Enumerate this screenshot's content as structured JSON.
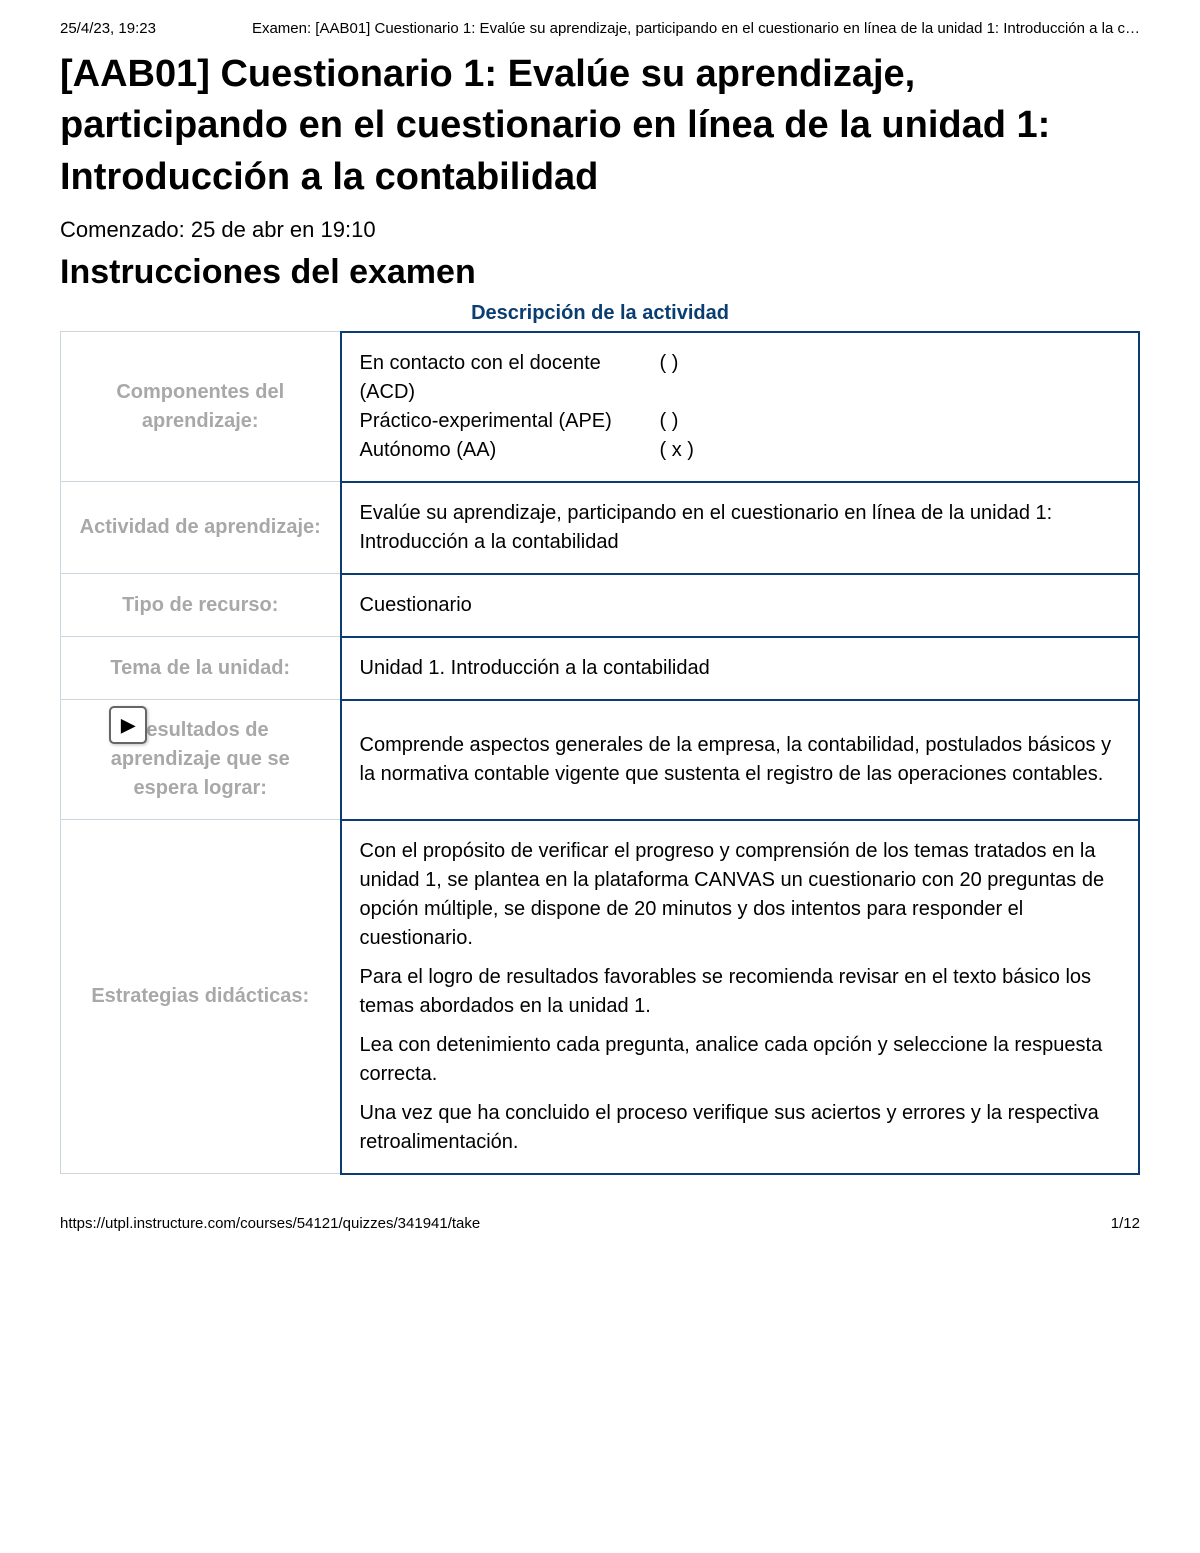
{
  "print_header": {
    "timestamp": "25/4/23, 19:23",
    "doc_title": "Examen: [AAB01] Cuestionario 1: Evalúe su aprendizaje, participando en el cuestionario en línea de la unidad 1: Introducción a la c…"
  },
  "page_title": "[AAB01] Cuestionario 1: Evalúe su aprendizaje, participando en el cuestionario en línea de la unidad 1: Introducción a la contabilidad",
  "started_text": "Comenzado: 25 de abr en 19:10",
  "instructions_heading": "Instrucciones del examen",
  "activity_desc_heading": "Descripción de la actividad",
  "table": {
    "rows": [
      {
        "label": "Componentes del aprendizaje:",
        "components": [
          {
            "label": "En contacto con el docente (ACD)",
            "mark": "(   )"
          },
          {
            "label": "Práctico-experimental (APE)",
            "mark": "(   )"
          },
          {
            "label": "Autónomo (AA)",
            "mark": "( x )"
          }
        ]
      },
      {
        "label": "Actividad de aprendizaje:",
        "text": "Evalúe su aprendizaje, participando en el cuestionario en línea de la unidad 1: Introducción a la contabilidad"
      },
      {
        "label": "Tipo de recurso:",
        "text": "Cuestionario"
      },
      {
        "label": "Tema de la unidad:",
        "text": "Unidad 1. Introducción a la contabilidad"
      },
      {
        "label": "Resultados de aprendizaje que se espera lograr:",
        "text": "Comprende aspectos generales de la empresa, la contabilidad, postulados básicos y la normativa contable vigente que sustenta el registro de las operaciones contables."
      },
      {
        "label": "Estrategias didácticas:",
        "paragraphs": [
          "Con el propósito de verificar el progreso y comprensión de los temas tratados en la unidad 1, se plantea en la plataforma CANVAS un cuestionario con 20 preguntas de opción múltiple, se dispone de 20 minutos y dos intentos para responder el cuestionario.",
          "Para el logro de resultados favorables se recomienda revisar en el texto básico los temas abordados en la unidad 1.",
          "Lea con detenimiento cada pregunta, analice cada opción y seleccione la respuesta correcta.",
          "Una vez que ha concluido el proceso verifique sus aciertos y errores y la respectiva retroalimentación."
        ]
      }
    ]
  },
  "play_glyph": "▶",
  "print_footer": {
    "url": "https://utpl.instructure.com/courses/54121/quizzes/341941/take",
    "page": "1/12"
  }
}
